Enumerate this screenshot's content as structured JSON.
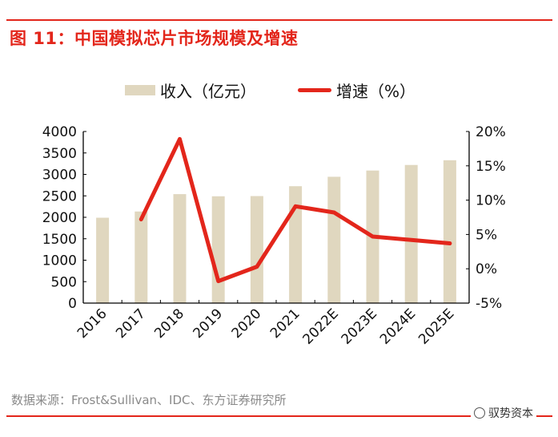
{
  "title": "图 11：中国模拟芯片市场规模及增速",
  "source": "数据来源：Frost&Sullivan、IDC、东方证券研究所",
  "watermark": "驭势资本",
  "colors": {
    "bar": "#e0d7bf",
    "line": "#e3261b",
    "accent": "#e3261b"
  },
  "chart_data": {
    "type": "bar+line",
    "categories": [
      "2016",
      "2017",
      "2018",
      "2019",
      "2020",
      "2021",
      "2022E",
      "2023E",
      "2024E",
      "2025E"
    ],
    "series": [
      {
        "name": "收入（亿元）",
        "type": "bar",
        "axis": "left",
        "values": [
          1990,
          2135,
          2540,
          2490,
          2495,
          2725,
          2945,
          3090,
          3220,
          3330
        ]
      },
      {
        "name": "增速（%）",
        "type": "line",
        "axis": "right",
        "values": [
          null,
          7.2,
          18.9,
          -1.8,
          0.3,
          9.1,
          8.2,
          4.7,
          4.2,
          3.7
        ]
      }
    ],
    "left_axis": {
      "ylim": [
        0,
        4000
      ],
      "ticks": [
        "0",
        "500",
        "1000",
        "1500",
        "2000",
        "2500",
        "3000",
        "3500",
        "4000"
      ]
    },
    "right_axis": {
      "ylim": [
        -5,
        20
      ],
      "ticks": [
        "-5%",
        "0%",
        "5%",
        "10%",
        "15%",
        "20%"
      ]
    },
    "legend": {
      "placement": "top-center",
      "entries": [
        "收入（亿元）",
        "增速（%）"
      ]
    },
    "grid": false
  }
}
